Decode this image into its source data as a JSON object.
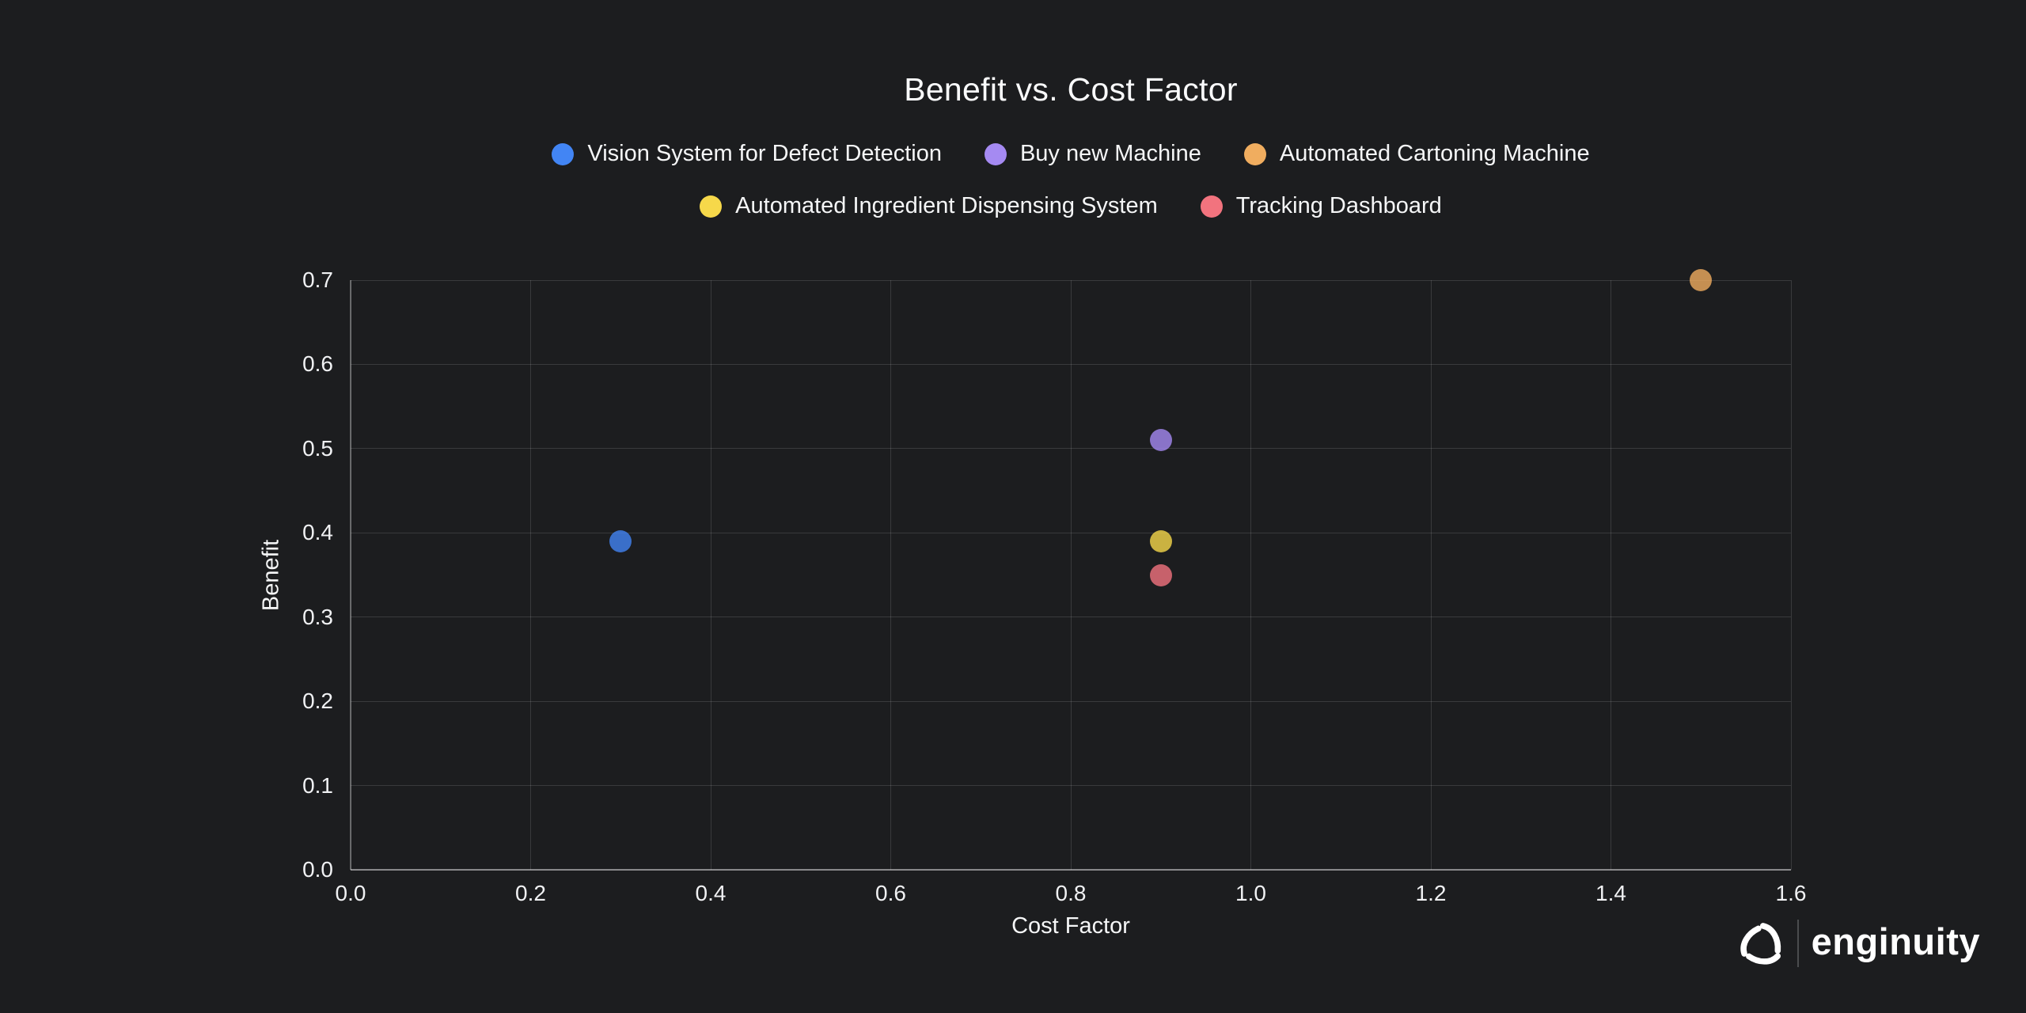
{
  "page": {
    "background": "#1c1d1f"
  },
  "chart_data": {
    "type": "scatter",
    "title": "Benefit vs. Cost Factor",
    "xlabel": "Cost Factor",
    "ylabel": "Benefit",
    "xlim": [
      0.0,
      1.6
    ],
    "ylim": [
      0.0,
      0.7
    ],
    "x_ticks": [
      "0.0",
      "0.2",
      "0.4",
      "0.6",
      "0.8",
      "1.0",
      "1.2",
      "1.4",
      "1.6"
    ],
    "y_ticks": [
      "0.0",
      "0.1",
      "0.2",
      "0.3",
      "0.4",
      "0.5",
      "0.6",
      "0.7"
    ],
    "grid": true,
    "legend_position": "top",
    "point_radius_px": 14,
    "point_opacity": 0.8,
    "series": [
      {
        "name": "Vision System for Defect Detection",
        "color": "#4285f4",
        "points": [
          {
            "x": 0.3,
            "y": 0.39
          }
        ]
      },
      {
        "name": "Buy new Machine",
        "color": "#a58af2",
        "points": [
          {
            "x": 0.9,
            "y": 0.51
          }
        ]
      },
      {
        "name": "Automated Cartoning Machine",
        "color": "#f0ad5f",
        "points": [
          {
            "x": 1.5,
            "y": 0.7
          }
        ]
      },
      {
        "name": "Automated Ingredient Dispensing System",
        "color": "#f6d84a",
        "points": [
          {
            "x": 0.9,
            "y": 0.39
          }
        ]
      },
      {
        "name": "Tracking Dashboard",
        "color": "#f2737e",
        "points": [
          {
            "x": 0.9,
            "y": 0.35
          }
        ]
      }
    ],
    "colors": {
      "text": "#f5f6f7",
      "grid": "rgba(255,255,255,0.13)",
      "y_axis_line": "rgba(255,255,255,0.30)",
      "x_axis_line": "rgba(255,255,255,0.45)"
    }
  },
  "branding": {
    "logo_text": "enginuity"
  }
}
